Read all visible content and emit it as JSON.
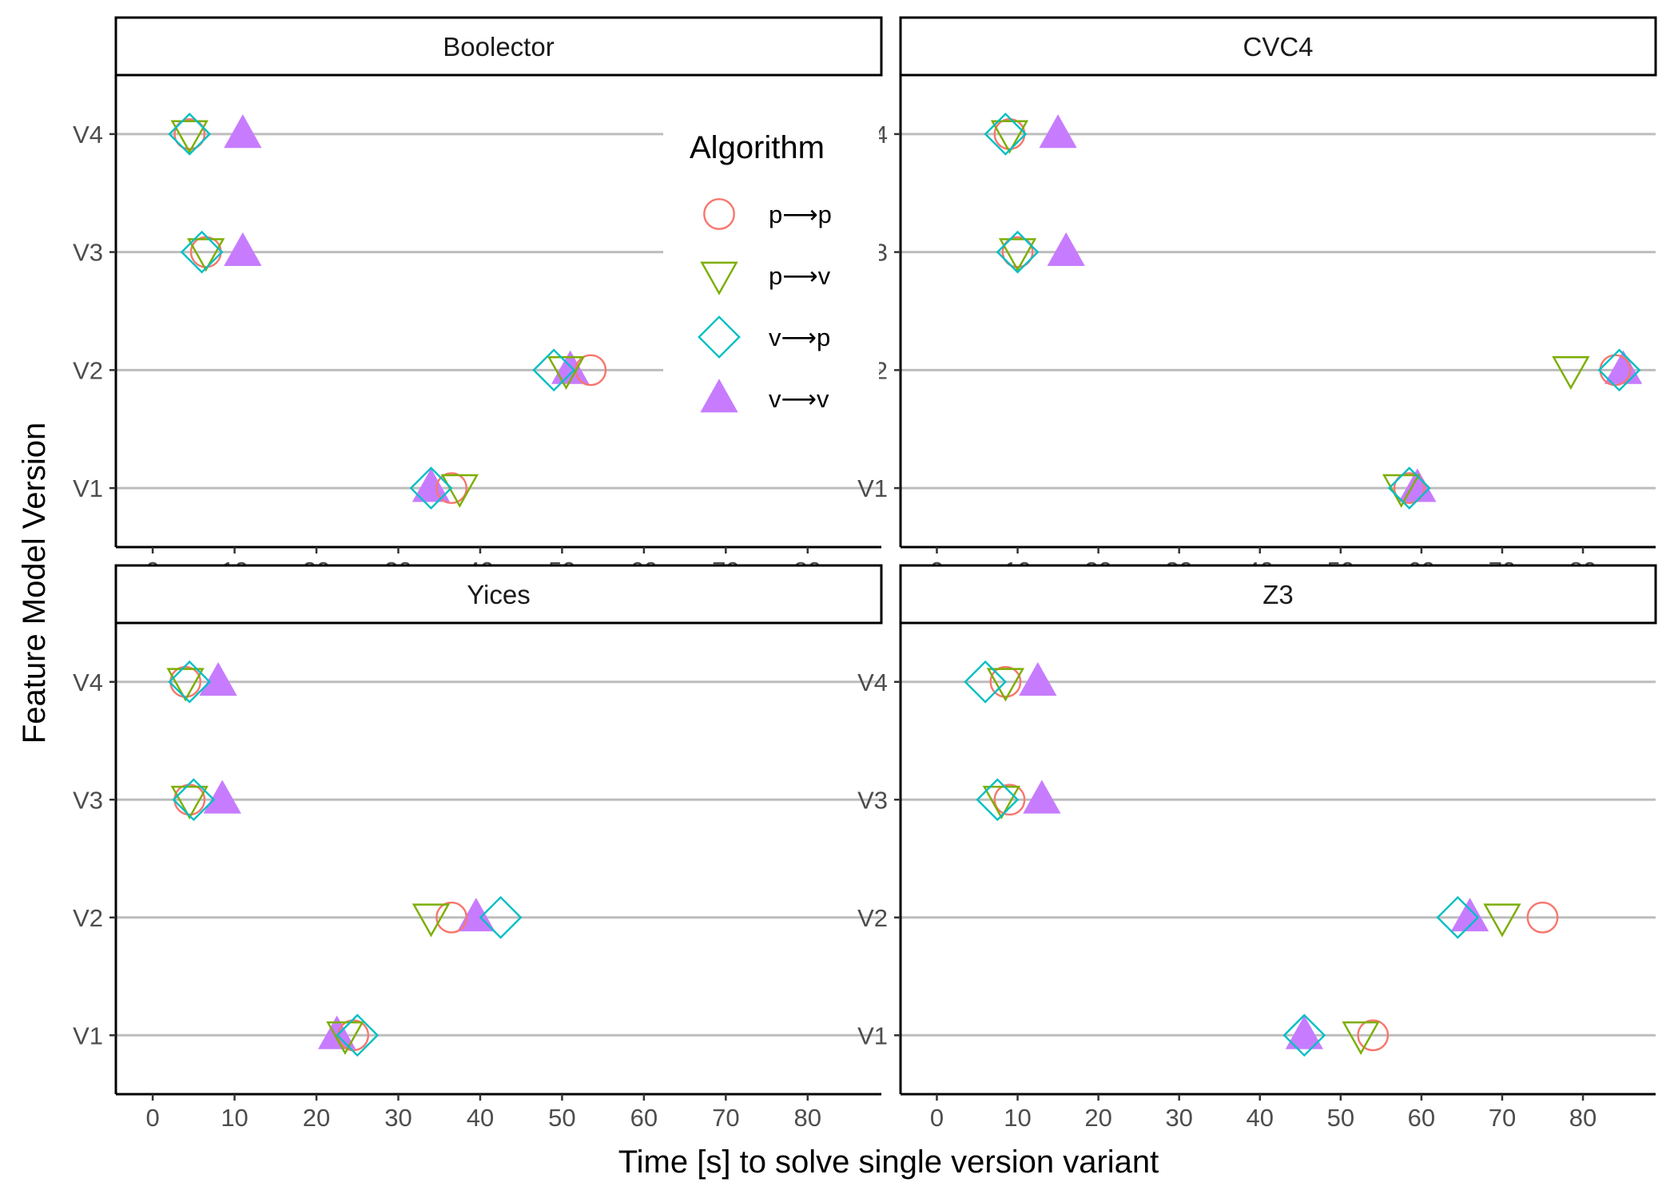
{
  "chart_data": {
    "type": "scatter",
    "xlabel": "Time [s] to solve single version variant",
    "ylabel": "Feature Model Version",
    "x_ticks": [
      0,
      10,
      20,
      30,
      40,
      50,
      60,
      70,
      80
    ],
    "xlim": [
      -4.5,
      89
    ],
    "categories": [
      "V1",
      "V2",
      "V3",
      "V4"
    ],
    "legend": {
      "title": "Algorithm",
      "position": "top-right of first panel"
    },
    "series": [
      {
        "name": "p⟶p",
        "shape": "circle",
        "filled": false,
        "color": "#F8766D"
      },
      {
        "name": "p⟶v",
        "shape": "triangle-down",
        "filled": false,
        "color": "#7CAE00"
      },
      {
        "name": "v⟶p",
        "shape": "diamond",
        "filled": false,
        "color": "#00BFC4"
      },
      {
        "name": "v⟶v",
        "shape": "triangle-up",
        "filled": true,
        "color": "#C77CFF"
      }
    ],
    "panels": [
      {
        "title": "Boolector",
        "values": {
          "p⟶p": {
            "V1": 36.5,
            "V2": 53.5,
            "V3": 6.5,
            "V4": 4.5
          },
          "p⟶v": {
            "V1": 37.5,
            "V2": 50.5,
            "V3": 6.5,
            "V4": 4.5
          },
          "v⟶p": {
            "V1": 34.0,
            "V2": 49.0,
            "V3": 6.0,
            "V4": 4.5
          },
          "v⟶v": {
            "V1": 34.0,
            "V2": 51.0,
            "V3": 11.0,
            "V4": 11.0
          }
        }
      },
      {
        "title": "CVC4",
        "values": {
          "p⟶p": {
            "V1": 58.5,
            "V2": 84.0,
            "V3": 10.0,
            "V4": 9.0
          },
          "p⟶v": {
            "V1": 57.5,
            "V2": 78.5,
            "V3": 10.0,
            "V4": 9.0
          },
          "v⟶p": {
            "V1": 58.5,
            "V2": 84.5,
            "V3": 10.0,
            "V4": 8.5
          },
          "v⟶v": {
            "V1": 59.5,
            "V2": 85.0,
            "V3": 16.0,
            "V4": 15.0
          }
        }
      },
      {
        "title": "Yices",
        "values": {
          "p⟶p": {
            "V1": 24.5,
            "V2": 36.5,
            "V3": 4.5,
            "V4": 4.0
          },
          "p⟶v": {
            "V1": 23.5,
            "V2": 34.0,
            "V3": 4.5,
            "V4": 4.0
          },
          "v⟶p": {
            "V1": 25.0,
            "V2": 42.5,
            "V3": 5.0,
            "V4": 4.5
          },
          "v⟶v": {
            "V1": 22.5,
            "V2": 39.5,
            "V3": 8.5,
            "V4": 8.0
          }
        }
      },
      {
        "title": "Z3",
        "values": {
          "p⟶p": {
            "V1": 54.0,
            "V2": 75.0,
            "V3": 9.0,
            "V4": 8.5
          },
          "p⟶v": {
            "V1": 52.5,
            "V2": 70.0,
            "V3": 8.0,
            "V4": 8.5
          },
          "v⟶p": {
            "V1": 45.5,
            "V2": 64.5,
            "V3": 7.5,
            "V4": 6.0
          },
          "v⟶v": {
            "V1": 45.5,
            "V2": 66.0,
            "V3": 13.0,
            "V4": 12.5
          }
        }
      }
    ]
  }
}
